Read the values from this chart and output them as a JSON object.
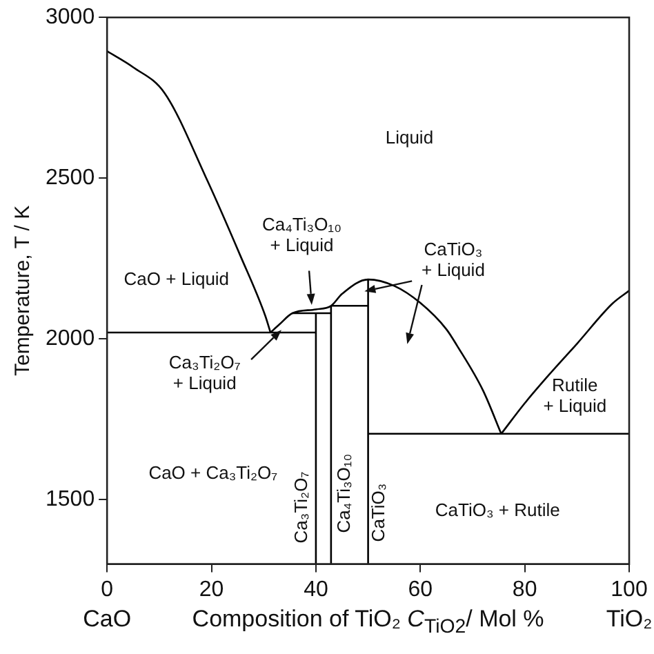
{
  "chart_data": {
    "type": "line",
    "xlabel": "Composition of TiO₂ C$_{TiO2}$/ Mol %",
    "ylabel": "Temperature, T / K",
    "xlim": [
      0,
      100
    ],
    "xticks": [
      0,
      20,
      40,
      60,
      80,
      100
    ],
    "ylim": [
      1300,
      3000
    ],
    "yticks": [
      1500,
      2000,
      2500,
      3000
    ],
    "grid": false,
    "legend": false,
    "marker": "none",
    "line_style": "solid",
    "series": [
      {
        "color": "#000000",
        "x": [
          0,
          5,
          11,
          19,
          25.5,
          30.3,
          31.3
        ],
        "values": [
          2895,
          2845,
          2765,
          2500,
          2260,
          2072,
          2020
        ]
      },
      {
        "color": "#000000",
        "x": [
          31.3,
          33,
          35.5,
          40,
          42.9,
          45,
          50,
          55,
          60,
          65,
          67,
          72,
          75.5
        ],
        "values": [
          2020,
          2045,
          2080,
          2092,
          2103,
          2140,
          2185,
          2165,
          2112,
          2030,
          1980,
          1840,
          1705
        ]
      },
      {
        "color": "#000000",
        "x": [
          75.5,
          80,
          85,
          90,
          96.8,
          100
        ],
        "values": [
          1705,
          1800,
          1895,
          1985,
          2110,
          2150
        ]
      },
      {
        "color": "#000000",
        "x": [
          0,
          40
        ],
        "values": [
          2020,
          2020
        ]
      },
      {
        "color": "#000000",
        "x": [
          35.5,
          42.9
        ],
        "values": [
          2080,
          2080
        ]
      },
      {
        "color": "#000000",
        "x": [
          42.9,
          50
        ],
        "values": [
          2103,
          2103
        ]
      },
      {
        "color": "#000000",
        "x": [
          50,
          100
        ],
        "values": [
          1705,
          1705
        ]
      },
      {
        "color": "#000000",
        "x": [
          40,
          40
        ],
        "values": [
          1300,
          2080
        ]
      },
      {
        "color": "#000000",
        "x": [
          42.9,
          42.9
        ],
        "values": [
          1300,
          2103
        ]
      },
      {
        "color": "#000000",
        "x": [
          50,
          50
        ],
        "values": [
          1300,
          2185
        ]
      }
    ],
    "annotations": [
      "Liquid",
      "CaO + Liquid",
      "Ca₄Ti₃O₁₀\n+ Liquid",
      "CaTiO₃\n+ Liquid",
      "Ca₃Ti₂O₇\n+ Liquid",
      "Rutile\n+ Liquid",
      "CaO + Ca₃Ti₂O₇",
      "CaTiO₃ + Rutile",
      "Ca₃Ti₂O₇",
      "Ca₄Ti₃O₁₀",
      "CaTiO₃",
      "CaO",
      "TiO₂"
    ]
  }
}
